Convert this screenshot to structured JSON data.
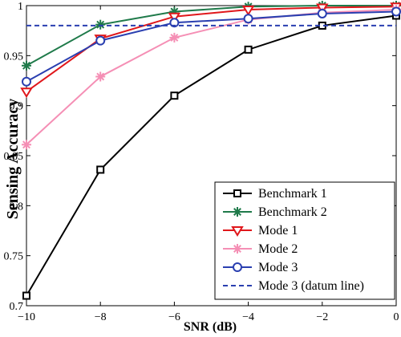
{
  "chart_data": {
    "type": "line",
    "xlabel": "SNR (dB)",
    "ylabel": "Sensing Accuracy",
    "xlim": [
      -10,
      0
    ],
    "ylim": [
      0.7,
      1.0
    ],
    "x_ticks": [
      -10,
      -8,
      -6,
      -4,
      -2,
      0
    ],
    "y_ticks": [
      0.7,
      0.75,
      0.8,
      0.85,
      0.9,
      0.95,
      1
    ],
    "x_tick_labels": [
      "−10",
      "−8",
      "−6",
      "−4",
      "−2",
      "0"
    ],
    "y_tick_labels": [
      "0.7",
      "0.75",
      "0.8",
      "0.85",
      "0.9",
      "0.95",
      "1"
    ],
    "grid": false,
    "legend_position": "bottom-right",
    "x": [
      -10,
      -8,
      -6,
      -4,
      -2,
      0
    ],
    "series": [
      {
        "name": "Benchmark 1",
        "values": [
          0.71,
          0.836,
          0.91,
          0.956,
          0.98,
          0.99
        ],
        "color": "#000000",
        "marker": "square",
        "style": "solid"
      },
      {
        "name": "Benchmark 2",
        "values": [
          0.94,
          0.981,
          0.994,
          0.999,
          1.0,
          1.0
        ],
        "color": "#1f7a4a",
        "marker": "star",
        "style": "solid"
      },
      {
        "name": "Mode 1",
        "values": [
          0.914,
          0.967,
          0.989,
          0.996,
          0.998,
          0.999
        ],
        "color": "#e0171b",
        "marker": "triangle-down",
        "style": "solid"
      },
      {
        "name": "Mode 2",
        "values": [
          0.861,
          0.929,
          0.968,
          0.986,
          0.993,
          0.996
        ],
        "color": "#f58fb5",
        "marker": "star",
        "style": "solid"
      },
      {
        "name": "Mode 3",
        "values": [
          0.924,
          0.965,
          0.983,
          0.987,
          0.992,
          0.994
        ],
        "color": "#2a3fb0",
        "marker": "circle",
        "style": "solid"
      },
      {
        "name": "Mode 3 (datum line)",
        "values": [
          0.98,
          0.98,
          0.98,
          0.98,
          0.98,
          0.98
        ],
        "color": "#2a3fb0",
        "marker": "none",
        "style": "dashed"
      }
    ]
  }
}
